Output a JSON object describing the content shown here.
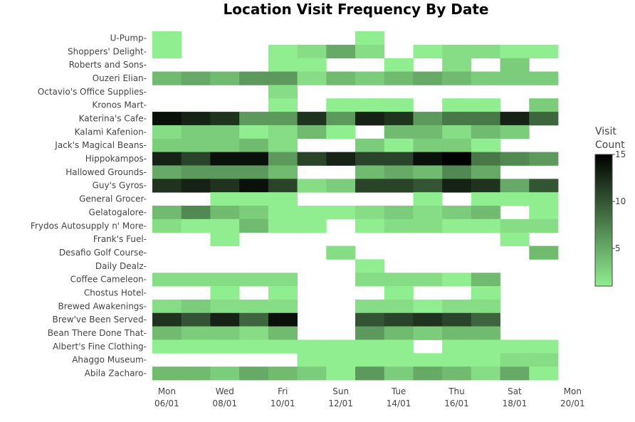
{
  "chart_data": {
    "type": "heatmap",
    "title": "Location Visit Frequency By Date",
    "colorbar": {
      "title_lines": [
        "Visit",
        "Count"
      ],
      "min": 1,
      "max": 15,
      "ticks": [
        5,
        10,
        15
      ]
    },
    "colors": {
      "low": "#90ee90",
      "high": "#000000"
    },
    "x_dates": [
      "06/01",
      "07/01",
      "08/01",
      "09/01",
      "10/01",
      "11/01",
      "12/01",
      "13/01",
      "14/01",
      "15/01",
      "16/01",
      "17/01",
      "18/01",
      "19/01"
    ],
    "x_ticks": [
      {
        "day": "Mon",
        "date": "06/01"
      },
      {
        "day": "Wed",
        "date": "08/01"
      },
      {
        "day": "Fri",
        "date": "10/01"
      },
      {
        "day": "Sun",
        "date": "12/01"
      },
      {
        "day": "Tue",
        "date": "14/01"
      },
      {
        "day": "Thu",
        "date": "16/01"
      },
      {
        "day": "Sat",
        "date": "18/01"
      },
      {
        "day": "Mon",
        "date": "20/01"
      }
    ],
    "locations": [
      "U-Pump",
      "Shoppers' Delight",
      "Roberts and Sons",
      "Ouzeri Elian",
      "Octavio's Office Supplies",
      "Kronos Mart",
      "Katerina's Cafe",
      "Kalami Kafenion",
      "Jack's Magical Beans",
      "Hippokampos",
      "Hallowed Grounds",
      "Guy's Gyros",
      "General Grocer",
      "Gelatogalore",
      "Frydos Autosupply n' More",
      "Frank's Fuel",
      "Desafio Golf Course",
      "Daily Dealz",
      "Coffee Cameleon",
      "Chostus Hotel",
      "Brewed Awakenings",
      "Brew've Been Served",
      "Bean There Done That",
      "Albert's Fine Clothing",
      "Ahaggo Museum",
      "Abila Zacharo"
    ],
    "values": [
      [
        1,
        null,
        null,
        null,
        null,
        null,
        null,
        1,
        null,
        null,
        null,
        null,
        null,
        null
      ],
      [
        1,
        null,
        null,
        null,
        1,
        2,
        5,
        2,
        null,
        1,
        2,
        2,
        1,
        1
      ],
      [
        null,
        null,
        null,
        null,
        1,
        1,
        null,
        null,
        1,
        null,
        2,
        null,
        3,
        null
      ],
      [
        4,
        5,
        4,
        6,
        6,
        2,
        4,
        3,
        4,
        5,
        4,
        3,
        3,
        3
      ],
      [
        null,
        null,
        null,
        null,
        2,
        null,
        null,
        null,
        null,
        null,
        null,
        null,
        null,
        null
      ],
      [
        null,
        null,
        null,
        null,
        1,
        null,
        1,
        1,
        1,
        null,
        1,
        1,
        null,
        3
      ],
      [
        14,
        13,
        12,
        6,
        6,
        12,
        6,
        13,
        12,
        6,
        8,
        8,
        13,
        9
      ],
      [
        2,
        3,
        3,
        1,
        2,
        4,
        1,
        null,
        4,
        4,
        2,
        4,
        3,
        null
      ],
      [
        3,
        3,
        3,
        4,
        2,
        null,
        null,
        3,
        1,
        3,
        3,
        1,
        null,
        null
      ],
      [
        13,
        11,
        14,
        14,
        6,
        11,
        13,
        11,
        11,
        14,
        15,
        8,
        7,
        6
      ],
      [
        5,
        6,
        6,
        6,
        4,
        null,
        null,
        4,
        5,
        4,
        7,
        5,
        null,
        null
      ],
      [
        12,
        13,
        12,
        14,
        11,
        2,
        3,
        11,
        11,
        10,
        13,
        12,
        5,
        10
      ],
      [
        null,
        null,
        1,
        1,
        1,
        null,
        null,
        null,
        null,
        1,
        null,
        1,
        1,
        1
      ],
      [
        4,
        7,
        4,
        3,
        1,
        1,
        1,
        2,
        3,
        2,
        3,
        4,
        null,
        1
      ],
      [
        2,
        1,
        1,
        4,
        1,
        1,
        null,
        1,
        2,
        2,
        1,
        1,
        2,
        2
      ],
      [
        null,
        null,
        1,
        null,
        null,
        null,
        null,
        null,
        null,
        null,
        null,
        null,
        1,
        null
      ],
      [
        null,
        null,
        null,
        null,
        null,
        null,
        2,
        null,
        null,
        null,
        null,
        null,
        null,
        4
      ],
      [
        null,
        null,
        null,
        null,
        null,
        null,
        null,
        1,
        null,
        null,
        null,
        null,
        null,
        null
      ],
      [
        2,
        2,
        2,
        2,
        2,
        null,
        null,
        2,
        2,
        2,
        1,
        4,
        null,
        null
      ],
      [
        null,
        null,
        1,
        null,
        1,
        null,
        null,
        null,
        1,
        null,
        null,
        1,
        null,
        null
      ],
      [
        2,
        3,
        2,
        2,
        2,
        null,
        null,
        2,
        2,
        1,
        2,
        2,
        null,
        null
      ],
      [
        12,
        10,
        13,
        9,
        14,
        null,
        null,
        10,
        11,
        12,
        11,
        9,
        null,
        null
      ],
      [
        4,
        3,
        3,
        2,
        4,
        null,
        null,
        6,
        4,
        3,
        4,
        4,
        null,
        null
      ],
      [
        1,
        1,
        1,
        1,
        1,
        1,
        1,
        1,
        1,
        null,
        1,
        1,
        1,
        1
      ],
      [
        null,
        null,
        null,
        null,
        null,
        1,
        1,
        1,
        1,
        1,
        1,
        1,
        2,
        2
      ],
      [
        4,
        4,
        3,
        5,
        4,
        3,
        1,
        6,
        3,
        5,
        4,
        2,
        5,
        1
      ]
    ]
  }
}
